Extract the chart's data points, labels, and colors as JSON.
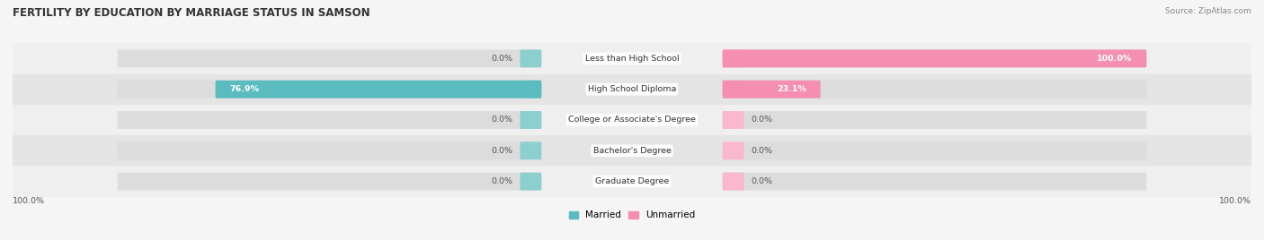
{
  "title": "FERTILITY BY EDUCATION BY MARRIAGE STATUS IN SAMSON",
  "source": "Source: ZipAtlas.com",
  "categories": [
    "Less than High School",
    "High School Diploma",
    "College or Associate's Degree",
    "Bachelor's Degree",
    "Graduate Degree"
  ],
  "married_values": [
    0.0,
    76.9,
    0.0,
    0.0,
    0.0
  ],
  "unmarried_values": [
    100.0,
    23.1,
    0.0,
    0.0,
    0.0
  ],
  "married_color": "#5bbcbf",
  "unmarried_color": "#f48fb1",
  "stub_married_color": "#8dcfcf",
  "stub_unmarried_color": "#f9b8cd",
  "bar_bg_color": "#dcdcdc",
  "row_bg_even": "#efefef",
  "row_bg_odd": "#e4e4e4",
  "fig_bg": "#f5f5f5",
  "figsize": [
    14.06,
    2.68
  ],
  "dpi": 100,
  "left_label": "100.0%",
  "right_label": "100.0%"
}
